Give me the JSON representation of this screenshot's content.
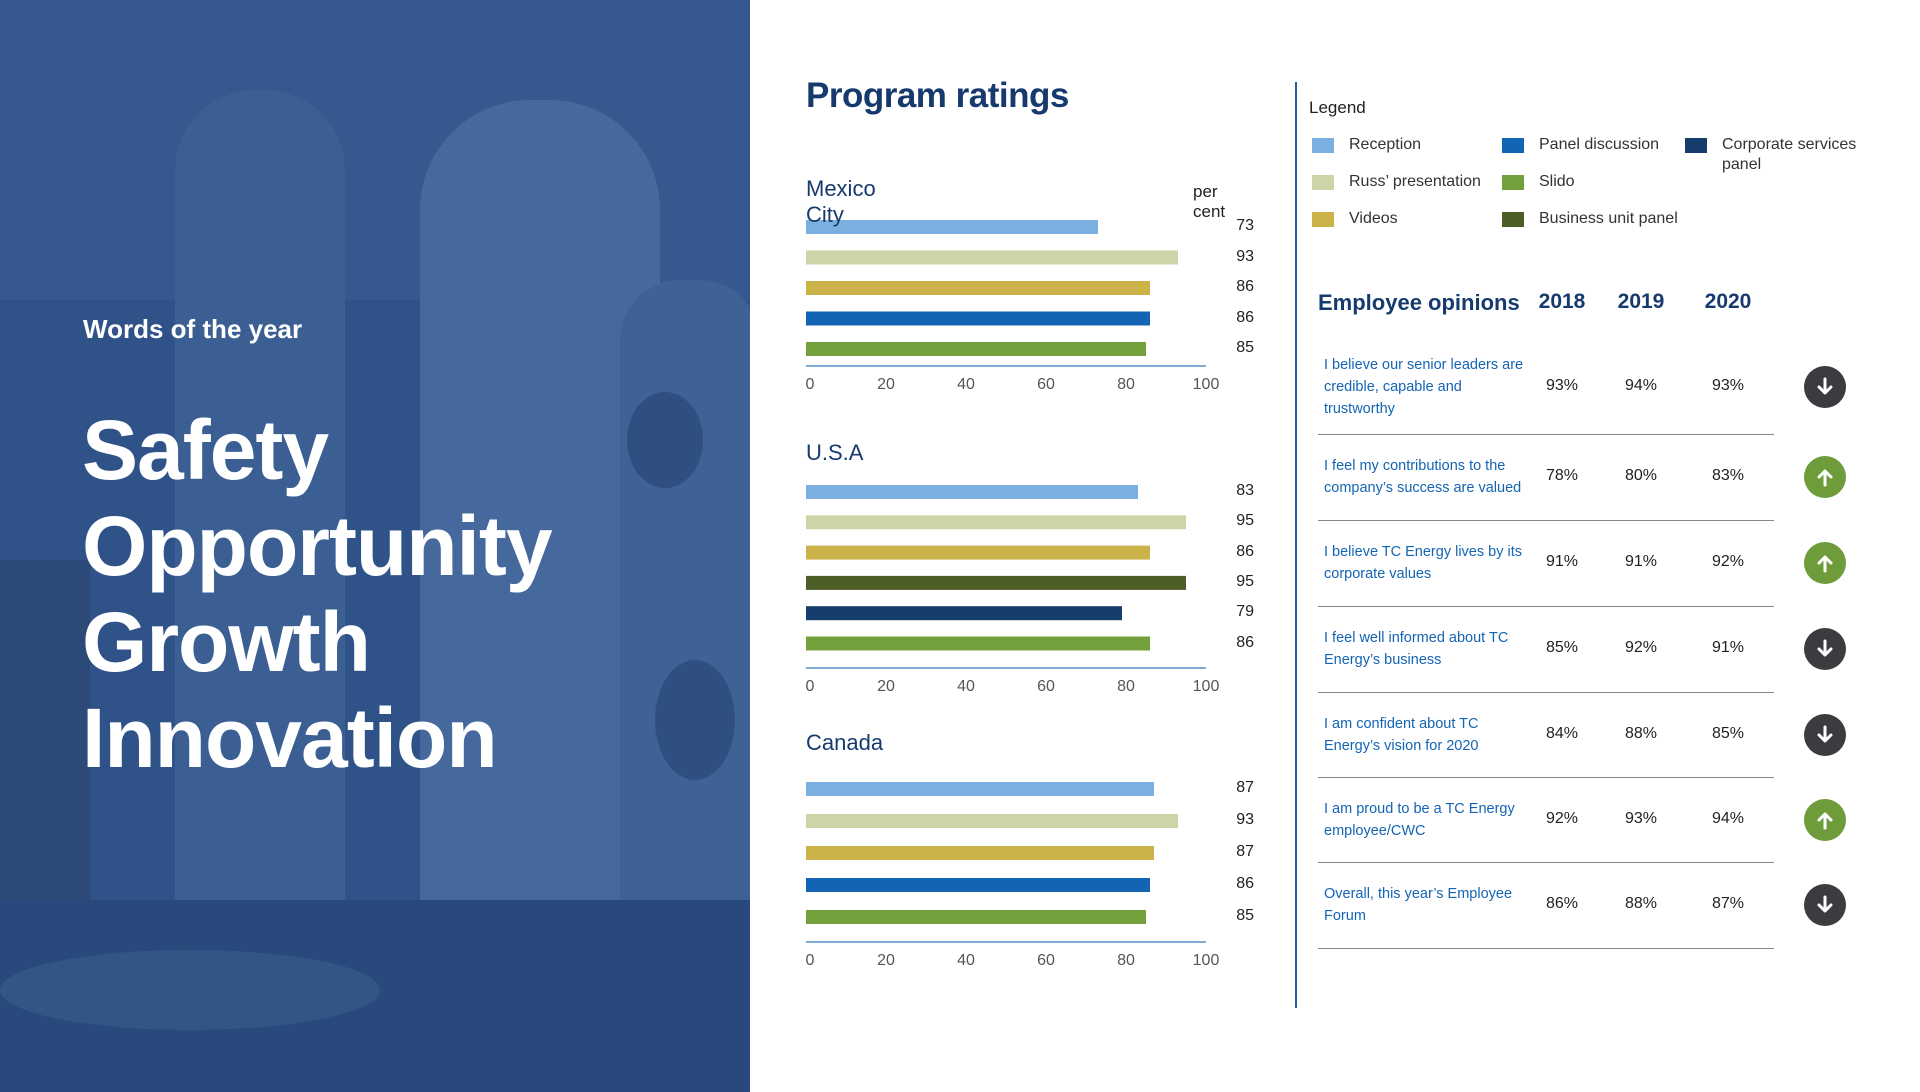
{
  "hero": {
    "kicker": "Words of the year",
    "words": [
      "Safety",
      "Opportunity",
      "Growth",
      "Innovation"
    ]
  },
  "ratings": {
    "title": "Program ratings",
    "unit_label": "per cent"
  },
  "colors": {
    "Reception": "#7bafdf",
    "Russ' presentation": "#cfd3a8",
    "Videos": "#cbb34a",
    "Panel discussion": "#1464b4",
    "Slido": "#74a03c",
    "Business unit panel": "#4d5d26",
    "Corporate services panel": "#163d6c"
  },
  "legend": {
    "title": "Legend",
    "items": [
      "Reception",
      "Russ’ presentation",
      "Videos",
      "Panel discussion",
      "Slido",
      "Business unit panel",
      "Corporate services panel"
    ]
  },
  "chart_data": [
    {
      "type": "bar",
      "title": "Mexico City",
      "ylabel": "per cent",
      "xlim": [
        0,
        100
      ],
      "ticks": [
        0,
        20,
        40,
        60,
        80,
        100
      ],
      "categories": [
        "Reception",
        "Russ' presentation",
        "Videos",
        "Panel discussion",
        "Slido"
      ],
      "values": [
        73,
        93,
        86,
        86,
        85
      ]
    },
    {
      "type": "bar",
      "title": "U.S.A",
      "ylabel": "per cent",
      "xlim": [
        0,
        100
      ],
      "ticks": [
        0,
        20,
        40,
        60,
        80,
        100
      ],
      "categories": [
        "Reception",
        "Russ' presentation",
        "Videos",
        "Business unit panel",
        "Corporate services panel",
        "Slido"
      ],
      "values": [
        83,
        95,
        86,
        95,
        79,
        86
      ]
    },
    {
      "type": "bar",
      "title": "Canada",
      "ylabel": "per cent",
      "xlim": [
        0,
        100
      ],
      "ticks": [
        0,
        20,
        40,
        60,
        80,
        100
      ],
      "categories": [
        "Reception",
        "Russ' presentation",
        "Videos",
        "Panel discussion",
        "Slido"
      ],
      "values": [
        87,
        93,
        87,
        86,
        85
      ]
    }
  ],
  "opinions": {
    "title": "Employee opinions",
    "years": [
      "2018",
      "2019",
      "2020"
    ],
    "rows": [
      {
        "statement": "I believe our senior leaders are credible, capable and trustworthy",
        "values": [
          "93%",
          "94%",
          "93%"
        ],
        "trend": "down"
      },
      {
        "statement": "I feel my contributions to the company’s success are valued",
        "values": [
          "78%",
          "80%",
          "83%"
        ],
        "trend": "up"
      },
      {
        "statement": "I believe TC Energy lives by its corporate values",
        "values": [
          "91%",
          "91%",
          "92%"
        ],
        "trend": "up"
      },
      {
        "statement": "I feel well informed about TC Energy’s business",
        "values": [
          "85%",
          "92%",
          "91%"
        ],
        "trend": "down"
      },
      {
        "statement": "I am confident about TC Energy’s vision for 2020",
        "values": [
          "84%",
          "88%",
          "85%"
        ],
        "trend": "down"
      },
      {
        "statement": "I am proud to be a TC Energy employee/CWC",
        "values": [
          "92%",
          "93%",
          "94%"
        ],
        "trend": "up"
      },
      {
        "statement": "Overall, this year’s Employee Forum",
        "values": [
          "86%",
          "88%",
          "87%"
        ],
        "trend": "down"
      }
    ]
  }
}
